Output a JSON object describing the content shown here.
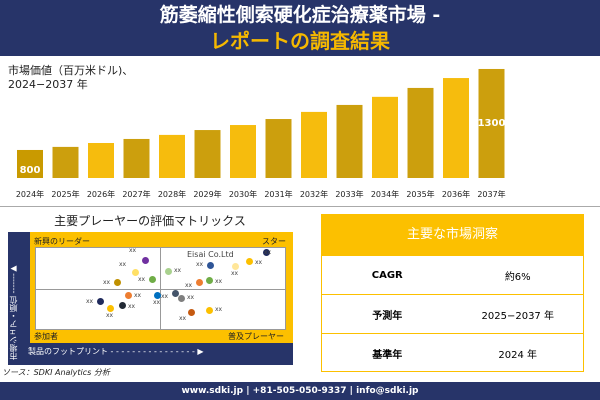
{
  "header": {
    "title": "筋萎縮性側索硬化症治療薬市場 -",
    "subtitle": "レポートの調査結果"
  },
  "chart_subtitle": {
    "line1": "市場価値（百万米ドル)、",
    "line2": "2024−2037 年"
  },
  "chart_data": {
    "type": "bar",
    "categories": [
      "2024年",
      "2025年",
      "2026年",
      "2027年",
      "2028年",
      "2029年",
      "2030年",
      "2031年",
      "2032年",
      "2033年",
      "2034年",
      "2035年",
      "2036年",
      "2037年"
    ],
    "values": [
      800,
      819,
      843,
      868,
      893,
      923,
      954,
      991,
      1035,
      1078,
      1128,
      1183,
      1244,
      1300
    ],
    "data_labels": {
      "first": "800",
      "last": "1300"
    },
    "colors": {
      "bar": "#f5b800",
      "bar_dark": "#c99a00"
    },
    "grid": false
  },
  "matrix": {
    "title": "主要プレーヤーの評価マトリックス",
    "quadrants": {
      "top_left": "新興のリーダー",
      "top_right": "スター",
      "bottom_left": "参加者",
      "bottom_right": "普及プレーヤー"
    },
    "y_axis": "市場シェア・順位",
    "x_axis": "製品のフットプリント",
    "highlight": "Eisai Co.Ltd",
    "players": [
      {
        "label": "xx",
        "color": "#7030a0"
      },
      {
        "label": "xx",
        "color": "#ffe066"
      },
      {
        "label": "xx",
        "color": "#70ad47"
      },
      {
        "label": "xx",
        "color": "#bf9000"
      },
      {
        "label": "xx",
        "color": "#a9d18e"
      },
      {
        "label": "xx",
        "color": "#2f5597"
      },
      {
        "label": "xx",
        "color": "#1f2a5c"
      },
      {
        "label": "xx",
        "color": "#fcc000"
      },
      {
        "label": "xx",
        "color": "#ffe699"
      },
      {
        "label": "xx",
        "color": "#ed7d31"
      },
      {
        "label": "xx",
        "color": "#70ad47"
      },
      {
        "label": "xx",
        "color": "#ed7d31"
      },
      {
        "label": "xx",
        "color": "#0070c0"
      },
      {
        "label": "xx",
        "color": "#1f2a5c"
      },
      {
        "label": "xx",
        "color": "#222a35"
      },
      {
        "label": "xx",
        "color": "#fcc000"
      },
      {
        "label": "xx",
        "color": "#44546a"
      },
      {
        "label": "xx",
        "color": "#7f7f7f"
      },
      {
        "label": "xx",
        "color": "#c55a11"
      },
      {
        "label": "xx",
        "color": "#fcc000"
      }
    ]
  },
  "source": "ソース：SDKI Analytics 分析",
  "insights": {
    "title": "主要な市場洞察",
    "rows": [
      {
        "label": "CAGR",
        "value": "約6%"
      },
      {
        "label": "予測年",
        "value": "2025−2037 年"
      },
      {
        "label": "基準年",
        "value": "2024 年"
      }
    ]
  },
  "footer": "www.sdki.jp | +81-505-050-9337 | info@sdki.jp"
}
